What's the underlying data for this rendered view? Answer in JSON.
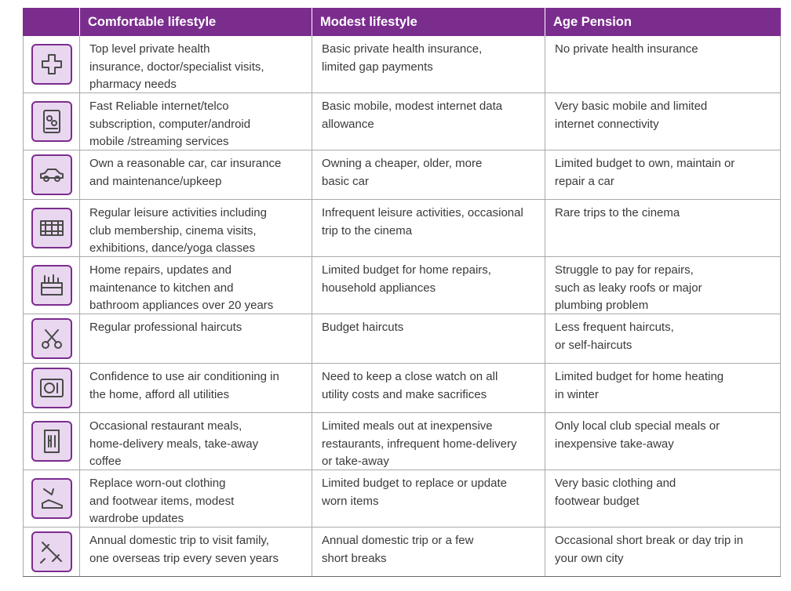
{
  "headers": [
    "",
    "Comfortable lifestyle",
    "Modest lifestyle",
    "Age Pension"
  ],
  "rows": [
    {
      "icon": "medical-cross-icon",
      "comfortable": "Top level private health\ninsurance, doctor/specialist visits,\npharmacy needs",
      "modest": "Basic private health insurance,\nlimited gap payments",
      "pension": "No private health insurance"
    },
    {
      "icon": "mobile-internet-icon",
      "comfortable": "Fast Reliable internet/telco\nsubscription, computer/android\nmobile /streaming services",
      "modest": "Basic mobile, modest internet data\nallowance",
      "pension": "Very basic mobile and limited\ninternet connectivity"
    },
    {
      "icon": "car-icon",
      "comfortable": "Own a reasonable car, car insurance\nand maintenance/upkeep",
      "modest": "Owning a cheaper, older, more\nbasic car",
      "pension": "Limited budget to own, maintain or\nrepair a car"
    },
    {
      "icon": "cinema-icon",
      "comfortable": "Regular leisure activities including\nclub membership, cinema visits,\nexhibitions, dance/yoga classes",
      "modest": "Infrequent leisure activities, occasional\ntrip to the cinema",
      "pension": "Rare trips to the cinema"
    },
    {
      "icon": "toolbox-icon",
      "comfortable": "Home repairs, updates and\nmaintenance to kitchen and\nbathroom appliances over 20 years",
      "modest": "Limited budget for home repairs,\nhousehold appliances",
      "pension": "Struggle to pay for repairs,\nsuch as leaky roofs or major\nplumbing problem"
    },
    {
      "icon": "scissors-comb-icon",
      "comfortable": "Regular professional haircuts",
      "modest": "Budget haircuts",
      "pension": "Less frequent haircuts,\nor self-haircuts"
    },
    {
      "icon": "air-conditioner-icon",
      "comfortable": "Confidence to use air conditioning in\nthe home, afford all utilities",
      "modest": "Need to keep a close watch on all\nutility costs and make sacrifices",
      "pension": "Limited budget for home heating\nin winter"
    },
    {
      "icon": "menu-cutlery-icon",
      "comfortable": "Occasional restaurant meals,\nhome-delivery meals, take-away\ncoffee",
      "modest": "Limited meals out at inexpensive\nrestaurants, infrequent home-delivery\nor take-away",
      "pension": "Only local club special meals or\ninexpensive take-away"
    },
    {
      "icon": "clothing-shoe-icon",
      "comfortable": "Replace worn-out clothing\nand footwear items, modest\nwardrobe updates",
      "modest": "Limited budget to replace or update\nworn items",
      "pension": "Very basic clothing and\nfootwear budget"
    },
    {
      "icon": "airplane-icon",
      "comfortable": "Annual domestic trip to visit family,\none overseas trip every seven years",
      "modest": "Annual domestic trip or a few\nshort breaks",
      "pension": "Occasional short break or day trip in\nyour own city"
    }
  ],
  "colors": {
    "header_bg": "#7b2d8e",
    "icon_bg": "#e9d7ef",
    "icon_border": "#7b2d8e"
  }
}
